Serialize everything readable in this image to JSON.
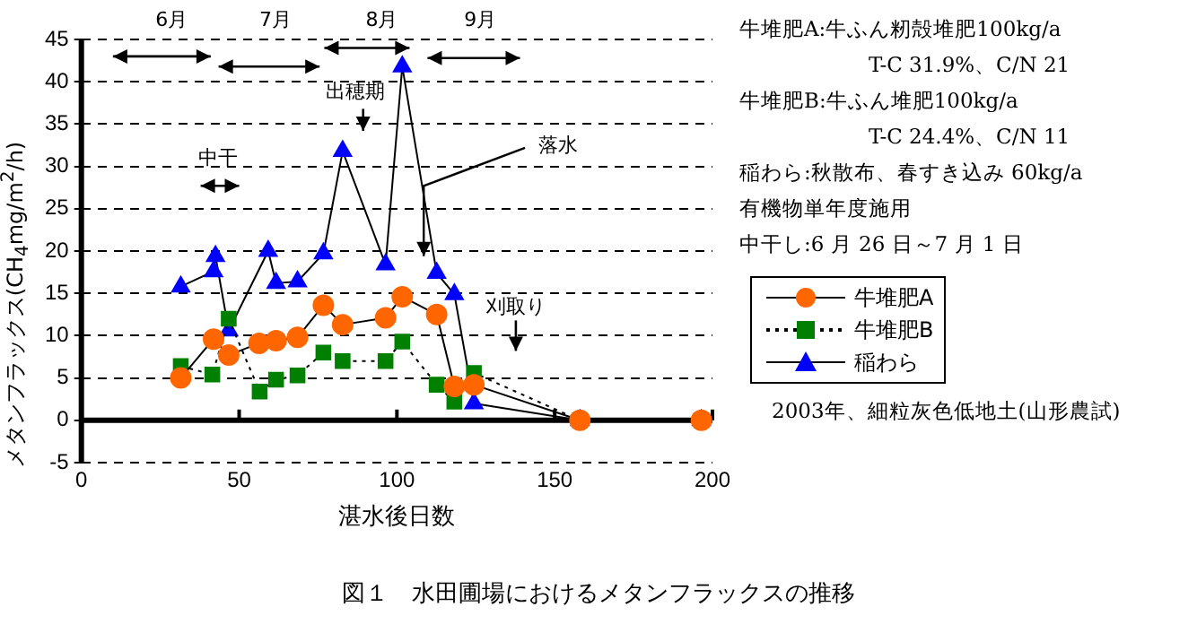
{
  "chart_data": {
    "type": "line",
    "title": "図１　水田圃場におけるメタンフラックスの推移",
    "xlabel": "湛水後日数",
    "ylabel": "メタンフラックス(CH$_{4}$mg/m$^{2}$/h)",
    "xlim": [
      0,
      200
    ],
    "xticks": [
      0,
      50,
      100,
      150,
      200
    ],
    "ylim": [
      -5,
      45
    ],
    "yticks": [
      -5,
      0,
      5,
      10,
      15,
      20,
      25,
      30,
      35,
      40,
      45
    ],
    "grid": "y",
    "legend": "right",
    "series": [
      {
        "name": "牛堆肥A",
        "color": "#ff6600",
        "marker": "circle",
        "line_style": "solid",
        "x": [
          31.5,
          41.9,
          46.7,
          56.3,
          61.7,
          68.5,
          76.7,
          82.8,
          96.4,
          101.7,
          112.6,
          118.2,
          124.4,
          158,
          196.5
        ],
        "values": [
          5.0,
          9.6,
          7.7,
          9.1,
          9.4,
          9.8,
          13.6,
          11.3,
          12.1,
          14.6,
          12.5,
          4.0,
          4.2,
          0,
          0
        ]
      },
      {
        "name": "牛堆肥B",
        "color": "#008000",
        "marker": "square",
        "line_style": "dotted",
        "x": [
          31.5,
          41.5,
          46.7,
          56.5,
          61.7,
          68.5,
          76.7,
          82.8,
          96.4,
          101.7,
          112.6,
          118.2,
          124.4,
          158,
          196.5
        ],
        "values": [
          6.4,
          5.4,
          12.0,
          3.4,
          4.8,
          5.3,
          8.0,
          7.0,
          7.0,
          9.3,
          4.2,
          2.2,
          5.6,
          0,
          0
        ]
      },
      {
        "name": "稲わら",
        "color": "#0000ff",
        "marker": "triangle",
        "line_style": "solid",
        "x": [
          31.5,
          41.9,
          42.5,
          46.7,
          59.2,
          61.7,
          68.5,
          76.7,
          82.8,
          96.4,
          101.7,
          112.6,
          118.2,
          124.4,
          158,
          196.5
        ],
        "values": [
          15.8,
          17.6,
          19.4,
          10.6,
          20.0,
          16.2,
          16.4,
          19.7,
          31.8,
          18.4,
          41.8,
          17.4,
          14.9,
          2.0,
          0,
          0
        ]
      }
    ],
    "annotations": [
      "6月",
      "7月",
      "8月",
      "9月",
      "中干",
      "出穂期",
      "落水",
      "刈取り",
      "牛堆肥A:牛ふん籾殻堆肥100kg/a",
      "T-C 31.9%、C/N 21",
      "牛堆肥B:牛ふん堆肥100kg/a",
      "T-C 24.4%、C/N 11",
      "稲わら:秋散布、春すき込み 60kg/a",
      "有機物単年度施用",
      "中干し:6 月 26 日～7 月 1 日",
      "2003年、細粒灰色低地土(山形農試)"
    ]
  }
}
